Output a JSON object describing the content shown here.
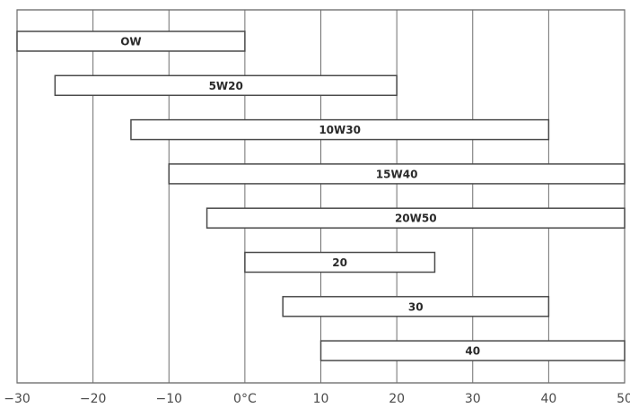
{
  "chart_data": {
    "type": "bar",
    "orientation": "horizontal-range",
    "title": "",
    "xlabel": "",
    "ylabel": "",
    "xlim": [
      -30,
      50
    ],
    "grid": true,
    "legend": "none",
    "x_ticks": [
      -30,
      -20,
      -10,
      0,
      10,
      20,
      30,
      40,
      50
    ],
    "x_tick_labels": [
      "-30",
      "-20",
      "-10",
      "0°C",
      "10",
      "20",
      "30",
      "40",
      "50"
    ],
    "categories": [
      "OW",
      "5W20",
      "10W30",
      "15W40",
      "20W50",
      "20",
      "30",
      "40"
    ],
    "ranges": [
      [
        -30,
        0
      ],
      [
        -25,
        20
      ],
      [
        -15,
        40
      ],
      [
        -10,
        50
      ],
      [
        -5,
        50
      ],
      [
        0,
        25
      ],
      [
        5,
        40
      ],
      [
        10,
        50
      ]
    ]
  }
}
